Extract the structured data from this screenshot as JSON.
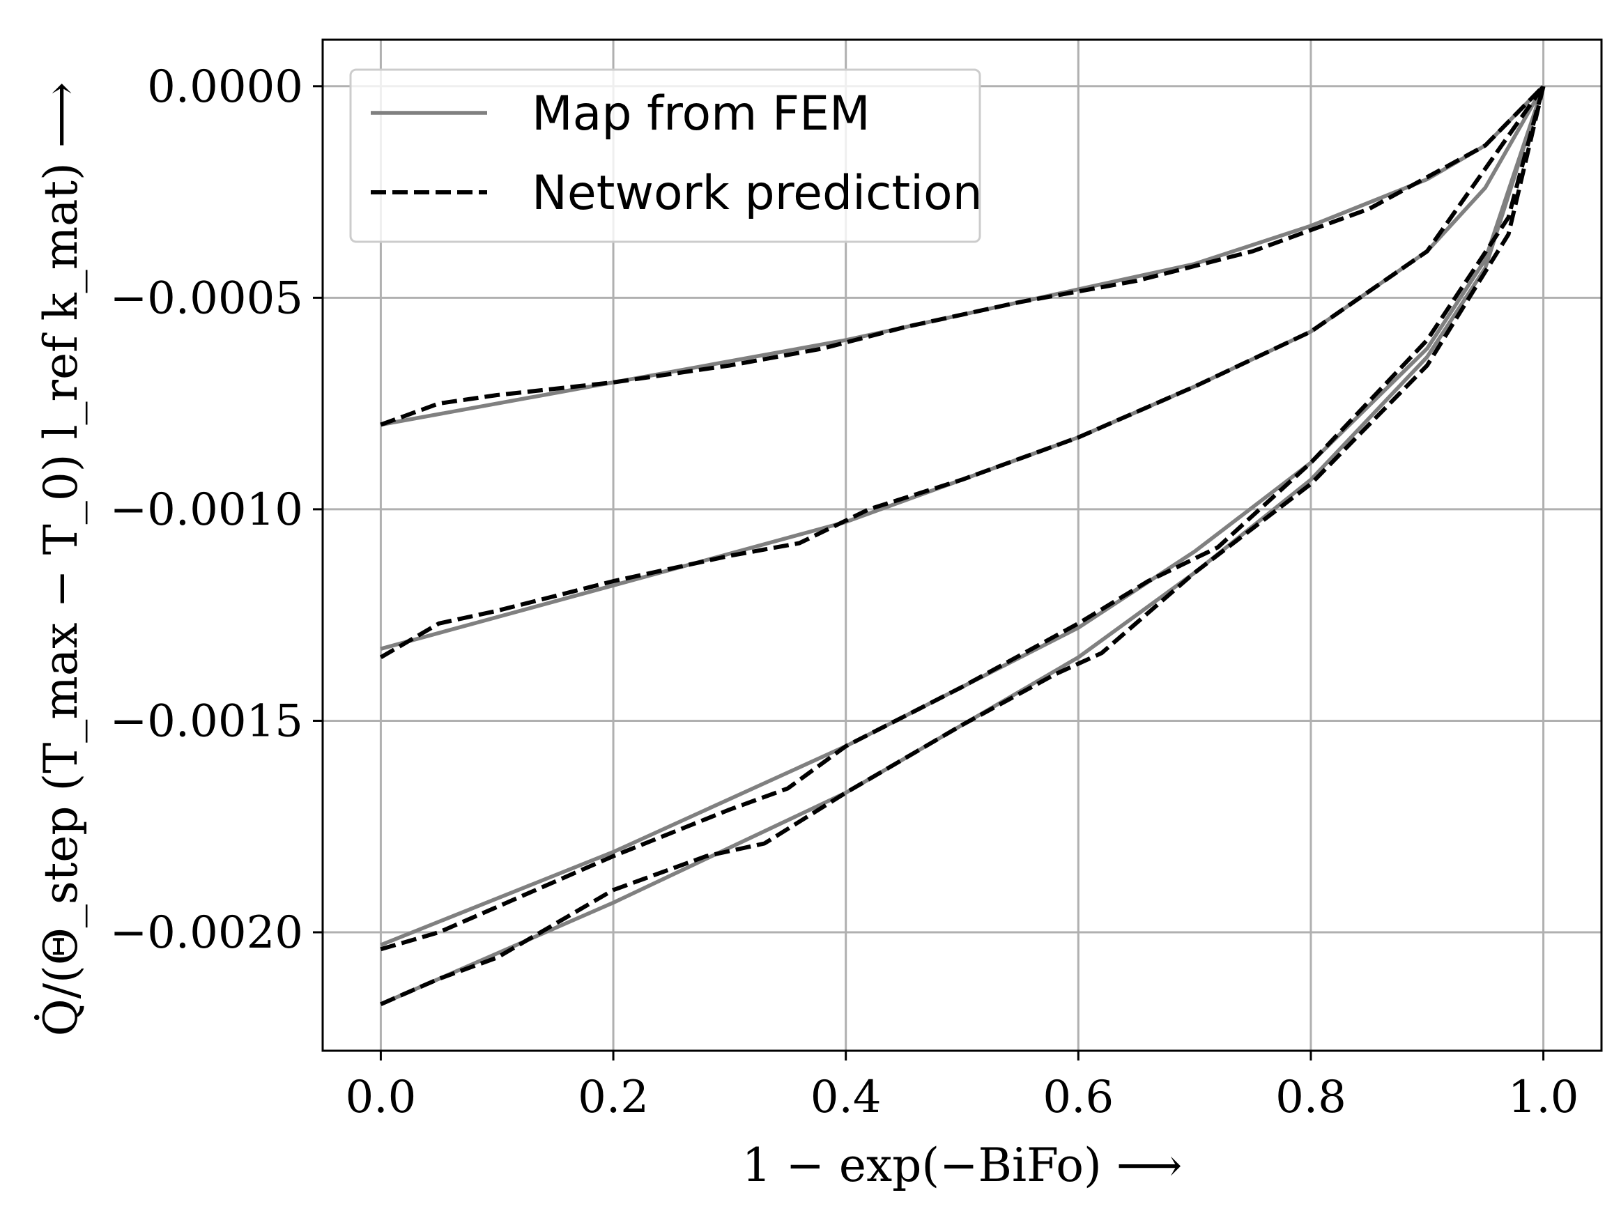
{
  "chart_data": {
    "type": "line",
    "xlabel": "1 − exp(−BiFo) ⟶",
    "ylabel": "Q̇/(Θ_step (T_max − T_0) l_ref k_mat) ⟶",
    "xlim": [
      -0.05,
      1.05
    ],
    "ylim": [
      -0.00228,
      0.00011
    ],
    "x_ticks": [
      0.0,
      0.2,
      0.4,
      0.6,
      0.8,
      1.0
    ],
    "x_tick_labels": [
      "0.0",
      "0.2",
      "0.4",
      "0.6",
      "0.8",
      "1.0"
    ],
    "y_ticks": [
      0.0,
      -0.0005,
      -0.001,
      -0.0015,
      -0.002
    ],
    "y_tick_labels": [
      "0.0000",
      "−0.0005",
      "−0.0010",
      "−0.0015",
      "−0.0020"
    ],
    "grid": true,
    "legend_position": "top-left",
    "legend": [
      "Map from FEM",
      "Network prediction"
    ],
    "colors": {
      "fem": "#808080",
      "network": "#000000",
      "grid": "#b0b0b0"
    },
    "series": [
      {
        "name": "Map from FEM",
        "style": "solid",
        "curves": [
          {
            "x": [
              0.0,
              0.2,
              0.4,
              0.6,
              0.7,
              0.8,
              0.9,
              0.95,
              1.0
            ],
            "y": [
              -0.0008,
              -0.0007,
              -0.0006,
              -0.00048,
              -0.00042,
              -0.00033,
              -0.00022,
              -0.00014,
              0.0
            ]
          },
          {
            "x": [
              0.0,
              0.2,
              0.4,
              0.6,
              0.7,
              0.8,
              0.9,
              0.95,
              1.0
            ],
            "y": [
              -0.00133,
              -0.00118,
              -0.00103,
              -0.00083,
              -0.00071,
              -0.00058,
              -0.00039,
              -0.00024,
              0.0
            ]
          },
          {
            "x": [
              0.0,
              0.2,
              0.4,
              0.6,
              0.7,
              0.8,
              0.9,
              0.95,
              1.0
            ],
            "y": [
              -0.00203,
              -0.00181,
              -0.00156,
              -0.00128,
              -0.0011,
              -0.00089,
              -0.00062,
              -0.00041,
              0.0
            ]
          },
          {
            "x": [
              0.0,
              0.2,
              0.4,
              0.6,
              0.7,
              0.8,
              0.9,
              0.95,
              1.0
            ],
            "y": [
              -0.00217,
              -0.00193,
              -0.00167,
              -0.00135,
              -0.00115,
              -0.00093,
              -0.00064,
              -0.00043,
              0.0
            ]
          }
        ]
      },
      {
        "name": "Network prediction",
        "style": "dashed",
        "curves": [
          {
            "x": [
              0.0,
              0.05,
              0.1,
              0.2,
              0.3,
              0.38,
              0.45,
              0.55,
              0.65,
              0.75,
              0.85,
              0.95,
              1.0
            ],
            "y": [
              -0.0008,
              -0.00075,
              -0.00073,
              -0.0007,
              -0.00066,
              -0.00062,
              -0.00057,
              -0.00051,
              -0.00046,
              -0.00039,
              -0.00029,
              -0.00014,
              0.0
            ]
          },
          {
            "x": [
              0.0,
              0.05,
              0.1,
              0.2,
              0.3,
              0.36,
              0.42,
              0.5,
              0.6,
              0.7,
              0.8,
              0.9,
              1.0
            ],
            "y": [
              -0.00135,
              -0.00127,
              -0.00124,
              -0.00117,
              -0.00111,
              -0.00108,
              -0.001,
              -0.00093,
              -0.00083,
              -0.00071,
              -0.00058,
              -0.00039,
              0.0
            ]
          },
          {
            "x": [
              0.0,
              0.05,
              0.1,
              0.2,
              0.3,
              0.35,
              0.4,
              0.5,
              0.6,
              0.66,
              0.72,
              0.8,
              0.9,
              0.97,
              1.0
            ],
            "y": [
              -0.00204,
              -0.002,
              -0.00194,
              -0.00182,
              -0.00171,
              -0.00166,
              -0.00156,
              -0.00142,
              -0.00127,
              -0.00117,
              -0.00109,
              -0.00089,
              -0.0006,
              -0.00031,
              0.0
            ]
          },
          {
            "x": [
              0.0,
              0.05,
              0.1,
              0.15,
              0.2,
              0.28,
              0.33,
              0.4,
              0.5,
              0.58,
              0.62,
              0.7,
              0.8,
              0.9,
              0.97,
              1.0
            ],
            "y": [
              -0.00217,
              -0.00211,
              -0.00206,
              -0.00198,
              -0.0019,
              -0.00182,
              -0.00179,
              -0.00167,
              -0.00151,
              -0.00139,
              -0.00134,
              -0.00115,
              -0.00094,
              -0.00066,
              -0.00035,
              0.0
            ]
          }
        ]
      }
    ]
  }
}
